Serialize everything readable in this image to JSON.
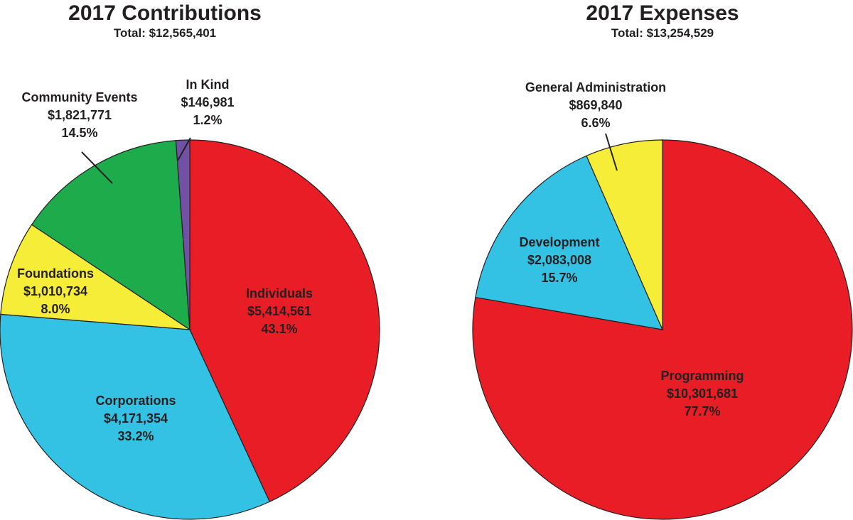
{
  "chart_data": [
    {
      "type": "pie",
      "title": "2017 Contributions",
      "subtitle": "Total: $12,565,401",
      "slices": [
        {
          "name": "Individuals",
          "amount": "$5,414,561",
          "percent_label": "43.1%",
          "value": 5414561,
          "color": "#e81d25"
        },
        {
          "name": "Corporations",
          "amount": "$4,171,354",
          "percent_label": "33.2%",
          "value": 4171354,
          "color": "#33c2e4"
        },
        {
          "name": "Foundations",
          "amount": "$1,010,734",
          "percent_label": "8.0%",
          "value": 1010734,
          "color": "#f5ed37"
        },
        {
          "name": "Community Events",
          "amount": "$1,821,771",
          "percent_label": "14.5%",
          "value": 1821771,
          "color": "#1eab4b"
        },
        {
          "name": "In Kind",
          "amount": "$146,981",
          "percent_label": "1.2%",
          "value": 146981,
          "color": "#7051a4"
        }
      ]
    },
    {
      "type": "pie",
      "title": "2017 Expenses",
      "subtitle": "Total: $13,254,529",
      "slices": [
        {
          "name": "Programming",
          "amount": "$10,301,681",
          "percent_label": "77.7%",
          "value": 10301681,
          "color": "#e81d25"
        },
        {
          "name": "Development",
          "amount": "$2,083,008",
          "percent_label": "15.7%",
          "value": 2083008,
          "color": "#33c2e4"
        },
        {
          "name": "General Administration",
          "amount": "$869,840",
          "percent_label": "6.6%",
          "value": 869840,
          "color": "#f5ed37"
        }
      ]
    }
  ]
}
